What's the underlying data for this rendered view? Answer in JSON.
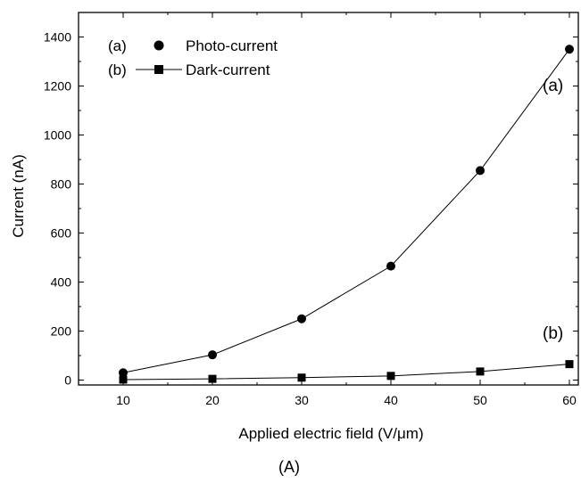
{
  "chart_data": {
    "type": "line",
    "title": "",
    "xlabel": "Applied electric field (V/μm)",
    "ylabel": "Current (nA)",
    "xlim": [
      5,
      61
    ],
    "ylim": [
      -20,
      1500
    ],
    "xticks": [
      10,
      20,
      30,
      40,
      50,
      60
    ],
    "yticks": [
      0,
      200,
      400,
      600,
      800,
      1000,
      1200,
      1400
    ],
    "x": [
      10,
      20,
      30,
      40,
      50,
      60
    ],
    "grid": false,
    "legend_position": "top-left",
    "series": [
      {
        "name": "Photo-current",
        "tag": "(a)",
        "marker": "circle",
        "values": [
          30,
          103,
          250,
          465,
          855,
          1350
        ]
      },
      {
        "name": "Dark-current",
        "tag": "(b)",
        "marker": "square",
        "values": [
          2,
          5,
          10,
          17,
          35,
          65
        ]
      }
    ],
    "annotations": [
      {
        "text": "(a)",
        "x": 57,
        "y": 1180
      },
      {
        "text": "(b)",
        "x": 57,
        "y": 170
      }
    ],
    "panel_label": "(A)"
  }
}
